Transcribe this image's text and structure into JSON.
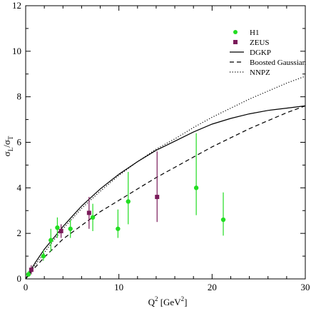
{
  "chart_data": {
    "type": "scatter",
    "title": "",
    "xlabel": {
      "base": "Q",
      "sup": "2",
      "unit_open": " [GeV",
      "unit_sup": "2",
      "unit_close": "]"
    },
    "ylabel": {
      "base": "σ",
      "sub1": "L",
      "mid": "/σ",
      "sub2": "T"
    },
    "xlim": [
      0,
      30
    ],
    "ylim": [
      0,
      12
    ],
    "xticks": [
      0,
      10,
      20,
      30
    ],
    "yticks": [
      0,
      2,
      4,
      6,
      8,
      10,
      12
    ],
    "legend_position": "top-right",
    "series": [
      {
        "name": "H1",
        "kind": "points",
        "marker": "circle",
        "color": "#22dd22",
        "points": [
          {
            "x": 0.3,
            "y": 0.2,
            "ylo": 0.1,
            "yhi": 0.35
          },
          {
            "x": 1.9,
            "y": 1.0,
            "ylo": 0.8,
            "yhi": 1.25
          },
          {
            "x": 2.7,
            "y": 1.7,
            "ylo": 1.2,
            "yhi": 2.2
          },
          {
            "x": 3.4,
            "y": 2.25,
            "ylo": 1.8,
            "yhi": 2.7
          },
          {
            "x": 4.8,
            "y": 2.2,
            "ylo": 1.8,
            "yhi": 2.6
          },
          {
            "x": 7.2,
            "y": 2.7,
            "ylo": 2.1,
            "yhi": 3.3
          },
          {
            "x": 9.9,
            "y": 2.2,
            "ylo": 1.8,
            "yhi": 3.05
          },
          {
            "x": 11.0,
            "y": 3.4,
            "ylo": 2.4,
            "yhi": 4.7
          },
          {
            "x": 18.3,
            "y": 4.0,
            "ylo": 2.8,
            "yhi": 6.4
          },
          {
            "x": 21.2,
            "y": 2.6,
            "ylo": 1.9,
            "yhi": 3.8
          }
        ]
      },
      {
        "name": "ZEUS",
        "kind": "points",
        "marker": "square",
        "color": "#7a1a5a",
        "points": [
          {
            "x": 0.6,
            "y": 0.4,
            "ylo": 0.2,
            "yhi": 0.6
          },
          {
            "x": 3.8,
            "y": 2.1,
            "ylo": 1.8,
            "yhi": 2.4
          },
          {
            "x": 6.8,
            "y": 2.9,
            "ylo": 2.2,
            "yhi": 3.6
          },
          {
            "x": 14.1,
            "y": 3.6,
            "ylo": 2.5,
            "yhi": 5.6
          }
        ]
      },
      {
        "name": "DGKP",
        "kind": "line",
        "dash": "solid",
        "x": [
          0,
          0.5,
          1,
          2,
          3,
          4,
          5,
          6,
          8,
          10,
          12,
          14,
          16,
          18,
          20,
          22,
          24,
          26,
          28,
          30
        ],
        "y": [
          0,
          0.35,
          0.7,
          1.3,
          1.8,
          2.3,
          2.75,
          3.2,
          3.95,
          4.6,
          5.15,
          5.65,
          6.05,
          6.45,
          6.8,
          7.05,
          7.25,
          7.4,
          7.5,
          7.6
        ]
      },
      {
        "name": "Boosted Gaussian",
        "kind": "line",
        "dash": "dashed",
        "x": [
          0,
          1,
          2,
          3,
          4,
          6,
          8,
          10,
          12,
          14,
          16,
          18,
          20,
          22,
          24,
          26,
          28,
          30
        ],
        "y": [
          0,
          0.5,
          0.95,
          1.35,
          1.75,
          2.35,
          2.95,
          3.45,
          3.95,
          4.45,
          4.9,
          5.35,
          5.8,
          6.2,
          6.6,
          6.95,
          7.3,
          7.6
        ]
      },
      {
        "name": "NNPZ",
        "kind": "line",
        "dash": "dotted",
        "x": [
          0,
          1,
          2,
          3,
          4,
          6,
          8,
          10,
          12,
          14,
          16,
          18,
          20,
          22,
          24,
          26,
          28,
          30
        ],
        "y": [
          0,
          0.6,
          1.15,
          1.7,
          2.2,
          3.1,
          3.85,
          4.55,
          5.15,
          5.7,
          6.15,
          6.65,
          7.1,
          7.5,
          7.9,
          8.25,
          8.6,
          8.9
        ]
      }
    ]
  }
}
